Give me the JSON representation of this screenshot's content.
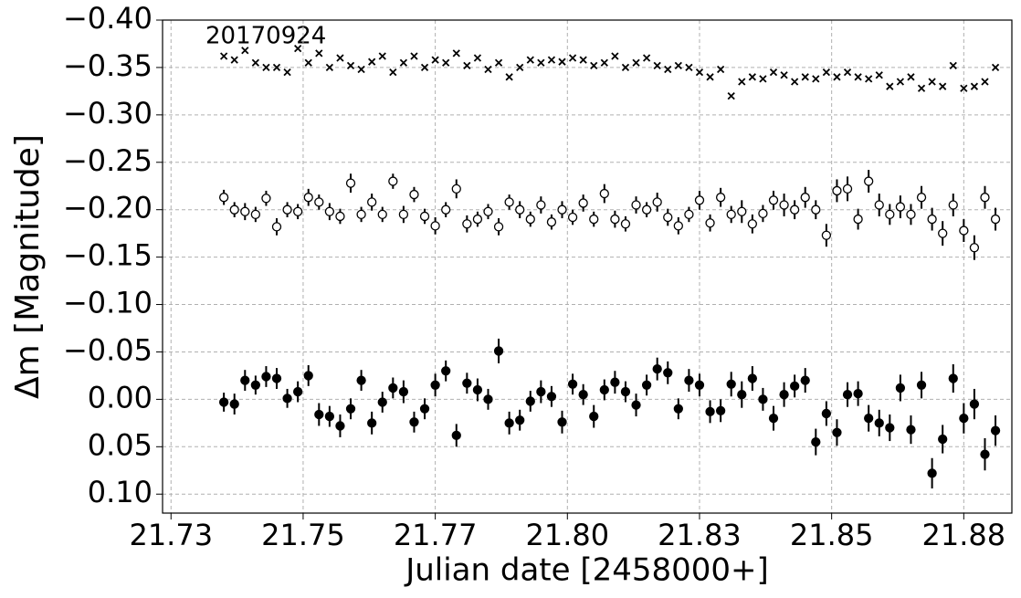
{
  "chart_data": {
    "type": "scatter",
    "annotation": "20170924",
    "xlabel": "Julian date [2458000+]",
    "ylabel": "Δm [Magnitude]",
    "xlim": [
      21.7234,
      21.8841
    ],
    "xticks": [
      {
        "value": 21.725,
        "label": "21.73"
      },
      {
        "value": 21.75,
        "label": "21.75"
      },
      {
        "value": 21.775,
        "label": "21.77"
      },
      {
        "value": 21.8,
        "label": "21.80"
      },
      {
        "value": 21.825,
        "label": "21.83"
      },
      {
        "value": 21.85,
        "label": "21.85"
      },
      {
        "value": 21.875,
        "label": "21.88"
      }
    ],
    "ylim": [
      -0.4,
      0.12
    ],
    "yaxis_inverted": true,
    "yticks": [
      {
        "value": -0.4,
        "label": "−0.40"
      },
      {
        "value": -0.35,
        "label": "−0.35"
      },
      {
        "value": -0.3,
        "label": "−0.30"
      },
      {
        "value": -0.25,
        "label": "−0.25"
      },
      {
        "value": -0.2,
        "label": "−0.20"
      },
      {
        "value": -0.15,
        "label": "−0.15"
      },
      {
        "value": -0.1,
        "label": "−0.10"
      },
      {
        "value": -0.05,
        "label": "−0.05"
      },
      {
        "value": 0,
        "label": "0.00"
      },
      {
        "value": 0.05,
        "label": "0.05"
      },
      {
        "value": 0.1,
        "label": "0.10"
      }
    ],
    "grid": true,
    "x": [
      21.735,
      21.737,
      21.739,
      21.741,
      21.743,
      21.745,
      21.747,
      21.749,
      21.751,
      21.753,
      21.755,
      21.757,
      21.759,
      21.761,
      21.763,
      21.765,
      21.767,
      21.769,
      21.771,
      21.773,
      21.775,
      21.777,
      21.779,
      21.781,
      21.783,
      21.785,
      21.787,
      21.789,
      21.791,
      21.793,
      21.795,
      21.797,
      21.799,
      21.801,
      21.803,
      21.805,
      21.807,
      21.809,
      21.811,
      21.813,
      21.815,
      21.817,
      21.819,
      21.821,
      21.823,
      21.825,
      21.827,
      21.829,
      21.831,
      21.833,
      21.835,
      21.837,
      21.839,
      21.841,
      21.843,
      21.845,
      21.847,
      21.849,
      21.851,
      21.853,
      21.855,
      21.857,
      21.859,
      21.861,
      21.863,
      21.865,
      21.867,
      21.869,
      21.871,
      21.873,
      21.875,
      21.877,
      21.879,
      21.881
    ],
    "series": [
      {
        "marker": "x",
        "color": "#000000",
        "values": [
          -0.362,
          -0.358,
          -0.368,
          -0.355,
          -0.35,
          -0.35,
          -0.345,
          -0.37,
          -0.355,
          -0.365,
          -0.35,
          -0.36,
          -0.352,
          -0.348,
          -0.356,
          -0.362,
          -0.345,
          -0.355,
          -0.362,
          -0.35,
          -0.358,
          -0.355,
          -0.365,
          -0.352,
          -0.36,
          -0.348,
          -0.355,
          -0.34,
          -0.35,
          -0.358,
          -0.355,
          -0.358,
          -0.356,
          -0.36,
          -0.358,
          -0.352,
          -0.355,
          -0.362,
          -0.35,
          -0.355,
          -0.36,
          -0.352,
          -0.348,
          -0.352,
          -0.35,
          -0.345,
          -0.34,
          -0.348,
          -0.32,
          -0.335,
          -0.34,
          -0.338,
          -0.345,
          -0.342,
          -0.335,
          -0.34,
          -0.338,
          -0.345,
          -0.34,
          -0.345,
          -0.34,
          -0.338,
          -0.342,
          -0.33,
          -0.335,
          -0.34,
          -0.328,
          -0.335,
          -0.33,
          -0.352,
          -0.328,
          -0.33,
          -0.335,
          -0.35
        ]
      },
      {
        "marker": "open-circle",
        "color": "#000000",
        "values": [
          -0.213,
          -0.2,
          -0.198,
          -0.195,
          -0.212,
          -0.182,
          -0.2,
          -0.198,
          -0.213,
          -0.208,
          -0.198,
          -0.193,
          -0.228,
          -0.195,
          -0.208,
          -0.195,
          -0.23,
          -0.195,
          -0.216,
          -0.193,
          -0.183,
          -0.2,
          -0.222,
          -0.185,
          -0.19,
          -0.198,
          -0.182,
          -0.208,
          -0.2,
          -0.19,
          -0.205,
          -0.187,
          -0.2,
          -0.192,
          -0.207,
          -0.19,
          -0.217,
          -0.19,
          -0.185,
          -0.205,
          -0.2,
          -0.208,
          -0.192,
          -0.183,
          -0.195,
          -0.21,
          -0.186,
          -0.213,
          -0.195,
          -0.198,
          -0.185,
          -0.196,
          -0.21,
          -0.205,
          -0.2,
          -0.213,
          -0.2,
          -0.173,
          -0.22,
          -0.222,
          -0.19,
          -0.23,
          -0.205,
          -0.195,
          -0.203,
          -0.195,
          -0.213,
          -0.19,
          -0.175,
          -0.205,
          -0.178,
          -0.16,
          -0.213,
          -0.19
        ],
        "errors": [
          0.008,
          0.008,
          0.009,
          0.008,
          0.008,
          0.009,
          0.008,
          0.008,
          0.009,
          0.008,
          0.009,
          0.008,
          0.01,
          0.008,
          0.009,
          0.008,
          0.008,
          0.009,
          0.008,
          0.008,
          0.009,
          0.008,
          0.01,
          0.009,
          0.008,
          0.008,
          0.009,
          0.008,
          0.009,
          0.008,
          0.009,
          0.008,
          0.009,
          0.008,
          0.009,
          0.008,
          0.01,
          0.009,
          0.008,
          0.009,
          0.008,
          0.01,
          0.009,
          0.009,
          0.008,
          0.01,
          0.009,
          0.01,
          0.009,
          0.012,
          0.01,
          0.009,
          0.01,
          0.012,
          0.01,
          0.011,
          0.01,
          0.012,
          0.012,
          0.013,
          0.011,
          0.012,
          0.012,
          0.011,
          0.012,
          0.011,
          0.012,
          0.012,
          0.013,
          0.012,
          0.012,
          0.013,
          0.012,
          0.012
        ]
      },
      {
        "marker": "circle",
        "color": "#000000",
        "values": [
          0.003,
          0.005,
          -0.02,
          -0.015,
          -0.024,
          -0.022,
          -0.001,
          -0.008,
          -0.025,
          0.016,
          0.018,
          0.028,
          0.01,
          -0.02,
          0.025,
          0.003,
          -0.012,
          -0.008,
          0.024,
          0.01,
          -0.015,
          -0.03,
          0.038,
          -0.017,
          -0.01,
          0,
          -0.051,
          0.025,
          0.022,
          0.002,
          -0.008,
          -0.003,
          0.024,
          -0.016,
          -0.005,
          0.018,
          -0.01,
          -0.018,
          -0.008,
          0.006,
          -0.015,
          -0.032,
          -0.028,
          0.01,
          -0.02,
          -0.015,
          0.013,
          0.012,
          -0.016,
          -0.005,
          -0.022,
          0,
          0.02,
          -0.005,
          -0.014,
          -0.02,
          0.045,
          0.015,
          0.035,
          -0.005,
          -0.006,
          0.02,
          0.025,
          0.03,
          -0.012,
          0.032,
          -0.015,
          0.078,
          0.042,
          -0.022,
          0.02,
          0.005,
          0.058,
          0.033
        ],
        "errors": [
          0.01,
          0.011,
          0.011,
          0.01,
          0.011,
          0.011,
          0.01,
          0.011,
          0.011,
          0.012,
          0.011,
          0.012,
          0.011,
          0.011,
          0.012,
          0.011,
          0.011,
          0.012,
          0.011,
          0.011,
          0.012,
          0.011,
          0.012,
          0.011,
          0.012,
          0.011,
          0.013,
          0.012,
          0.011,
          0.011,
          0.012,
          0.011,
          0.012,
          0.011,
          0.011,
          0.012,
          0.011,
          0.012,
          0.011,
          0.012,
          0.011,
          0.012,
          0.012,
          0.011,
          0.012,
          0.012,
          0.012,
          0.012,
          0.013,
          0.014,
          0.013,
          0.012,
          0.013,
          0.013,
          0.012,
          0.013,
          0.014,
          0.013,
          0.014,
          0.013,
          0.013,
          0.014,
          0.014,
          0.014,
          0.014,
          0.015,
          0.014,
          0.016,
          0.015,
          0.015,
          0.016,
          0.016,
          0.017,
          0.016
        ]
      }
    ]
  }
}
